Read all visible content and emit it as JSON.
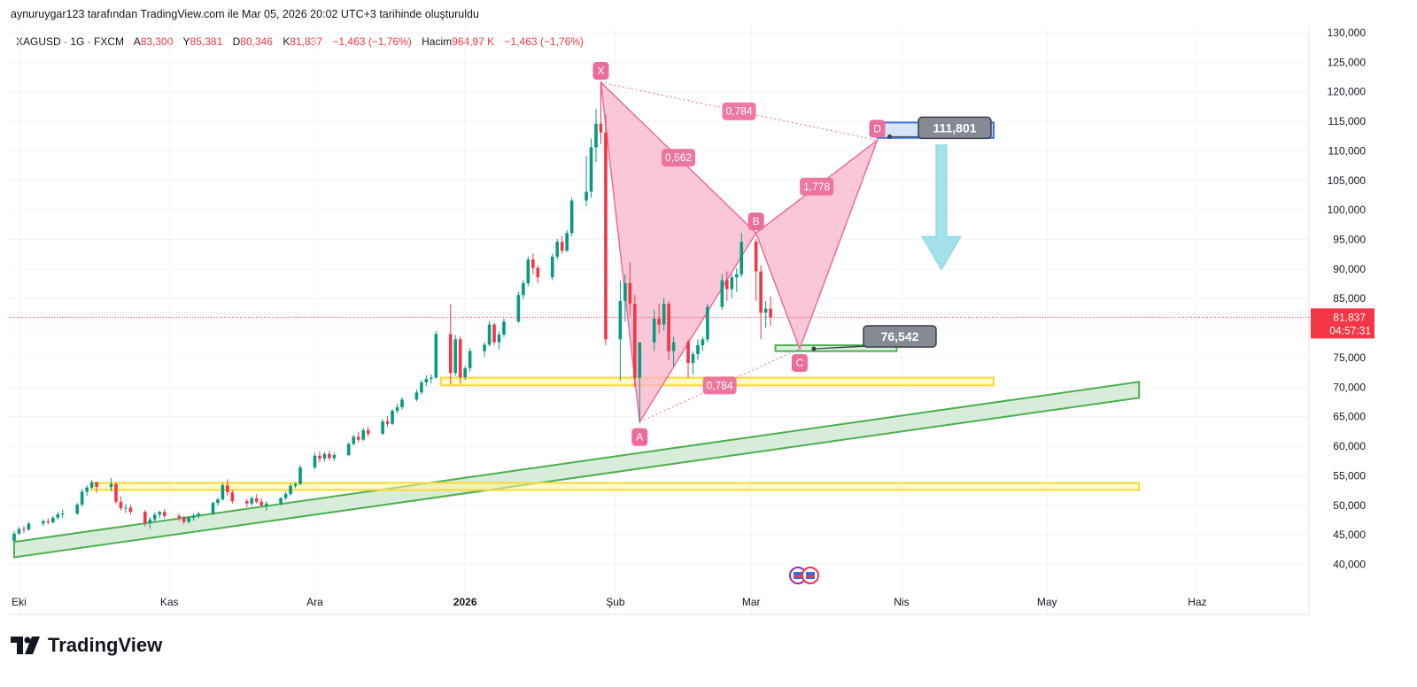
{
  "caption": "aynuruygar123 tarafından TradingView.com ile Mar 05, 2026 20:02 UTC+3 tarihinde oluşturuldu",
  "legend": {
    "symbol": "XAGUSD · 1G · FXCM",
    "open_label": "A",
    "open": "83,300",
    "high_label": "Y",
    "high": "85,381",
    "low_label": "D",
    "low": "80,346",
    "close_label": "K",
    "close": "81,837",
    "change": "−1,463 (−1,76%)",
    "volume_label": "Hacim",
    "volume": "964,97 K",
    "volume_change": "−1,463 (−1,76%)"
  },
  "brand": "TradingView",
  "last_price": {
    "value": "81,837",
    "countdown": "04:57:31"
  },
  "colors": {
    "up": "#089981",
    "down": "#f23645",
    "pattern": "#ec6d9b",
    "pattern_fill": "#f8b4cb",
    "support": "#4caf50",
    "zone_yellow": "#ffeb3b",
    "target_box": "#3b6fd8",
    "arrow": "#7fd3e6",
    "callout": "#858a95"
  },
  "chart_data": {
    "type": "candlestick",
    "ylim": [
      37000,
      132000
    ],
    "y_ticks": [
      "40,000",
      "45,000",
      "50,000",
      "55,000",
      "60,000",
      "65,000",
      "70,000",
      "75,000",
      "80,000",
      "85,000",
      "90,000",
      "95,000",
      "100,000",
      "105,000",
      "110,000",
      "115,000",
      "120,000",
      "125,000",
      "130,000"
    ],
    "x_ticks": [
      {
        "label": "Eki",
        "date": "2025-10-01",
        "bold": false
      },
      {
        "label": "Kas",
        "date": "2025-11-01",
        "bold": false
      },
      {
        "label": "Ara",
        "date": "2025-12-01",
        "bold": false
      },
      {
        "label": "2026",
        "date": "2026-01-01",
        "bold": true
      },
      {
        "label": "Şub",
        "date": "2026-02-01",
        "bold": false
      },
      {
        "label": "Mar",
        "date": "2026-03-01",
        "bold": false
      },
      {
        "label": "Nis",
        "date": "2026-04-01",
        "bold": false
      },
      {
        "label": "May",
        "date": "2026-05-01",
        "bold": false
      },
      {
        "label": "Haz",
        "date": "2026-06-01",
        "bold": false
      }
    ],
    "candles": [
      [
        "2025-09-30",
        44.0,
        45.6,
        43.8,
        45.2
      ],
      [
        "2025-10-01",
        45.2,
        46.3,
        45.0,
        46.0
      ],
      [
        "2025-10-02",
        46.0,
        46.5,
        45.3,
        45.9
      ],
      [
        "2025-10-03",
        45.9,
        47.2,
        45.7,
        46.9
      ],
      [
        "2025-10-06",
        46.9,
        47.6,
        46.5,
        47.3
      ],
      [
        "2025-10-07",
        47.3,
        47.8,
        46.8,
        47.1
      ],
      [
        "2025-10-08",
        47.1,
        48.2,
        46.9,
        47.9
      ],
      [
        "2025-10-09",
        47.9,
        48.9,
        47.5,
        48.5
      ],
      [
        "2025-10-10",
        48.5,
        49.3,
        47.9,
        48.6
      ],
      [
        "2025-10-13",
        48.6,
        50.4,
        48.4,
        50.1
      ],
      [
        "2025-10-14",
        50.1,
        52.8,
        49.8,
        52.3
      ],
      [
        "2025-10-15",
        52.3,
        53.4,
        51.6,
        53.0
      ],
      [
        "2025-10-16",
        53.0,
        54.3,
        52.7,
        53.9
      ],
      [
        "2025-10-17",
        53.9,
        54.0,
        52.1,
        53.1
      ],
      [
        "2025-10-20",
        53.1,
        54.6,
        52.4,
        53.6
      ],
      [
        "2025-10-21",
        53.6,
        53.9,
        50.2,
        50.6
      ],
      [
        "2025-10-22",
        50.6,
        51.5,
        49.1,
        49.5
      ],
      [
        "2025-10-23",
        49.5,
        50.2,
        48.7,
        49.6
      ],
      [
        "2025-10-24",
        49.6,
        50.1,
        48.4,
        48.9
      ],
      [
        "2025-10-27",
        48.9,
        49.2,
        46.4,
        47.0
      ],
      [
        "2025-10-28",
        47.0,
        48.0,
        46.0,
        47.6
      ],
      [
        "2025-10-29",
        47.6,
        48.8,
        47.2,
        48.4
      ],
      [
        "2025-10-30",
        48.4,
        49.1,
        47.8,
        48.9
      ],
      [
        "2025-10-31",
        48.9,
        49.4,
        47.8,
        48.2
      ],
      [
        "2025-11-03",
        48.2,
        48.6,
        47.3,
        47.9
      ],
      [
        "2025-11-04",
        47.9,
        48.2,
        46.8,
        47.2
      ],
      [
        "2025-11-05",
        47.2,
        48.1,
        46.9,
        47.9
      ],
      [
        "2025-11-06",
        47.9,
        48.6,
        47.4,
        48.2
      ],
      [
        "2025-11-07",
        48.2,
        48.9,
        47.8,
        48.6
      ],
      [
        "2025-11-10",
        48.6,
        50.6,
        48.4,
        50.4
      ],
      [
        "2025-11-11",
        50.4,
        51.3,
        49.9,
        51.0
      ],
      [
        "2025-11-12",
        51.0,
        53.8,
        50.8,
        53.4
      ],
      [
        "2025-11-13",
        53.4,
        54.4,
        51.6,
        52.2
      ],
      [
        "2025-11-14",
        52.2,
        52.6,
        50.3,
        50.7
      ],
      [
        "2025-11-17",
        50.7,
        51.1,
        49.7,
        50.3
      ],
      [
        "2025-11-18",
        50.3,
        51.5,
        49.9,
        51.2
      ],
      [
        "2025-11-19",
        51.2,
        51.9,
        50.3,
        50.6
      ],
      [
        "2025-11-20",
        50.6,
        51.2,
        49.8,
        50.0
      ],
      [
        "2025-11-21",
        50.0,
        50.7,
        49.1,
        50.3
      ],
      [
        "2025-11-24",
        50.3,
        51.4,
        50.0,
        51.2
      ],
      [
        "2025-11-25",
        51.2,
        52.3,
        50.9,
        51.9
      ],
      [
        "2025-11-26",
        51.9,
        53.7,
        51.6,
        53.3
      ],
      [
        "2025-11-27",
        53.3,
        53.9,
        52.9,
        53.6
      ],
      [
        "2025-11-28",
        53.6,
        56.8,
        53.4,
        56.4
      ],
      [
        "2025-12-01",
        56.4,
        58.9,
        56.1,
        58.4
      ],
      [
        "2025-12-02",
        58.4,
        59.1,
        57.2,
        57.9
      ],
      [
        "2025-12-03",
        57.9,
        59.0,
        57.4,
        58.7
      ],
      [
        "2025-12-04",
        58.7,
        59.2,
        57.6,
        58.0
      ],
      [
        "2025-12-05",
        58.0,
        58.9,
        57.5,
        58.5
      ],
      [
        "2025-12-08",
        58.5,
        60.6,
        58.3,
        60.4
      ],
      [
        "2025-12-09",
        60.4,
        62.0,
        60.1,
        61.6
      ],
      [
        "2025-12-10",
        61.6,
        62.4,
        60.6,
        61.1
      ],
      [
        "2025-12-11",
        61.1,
        63.1,
        60.9,
        62.7
      ],
      [
        "2025-12-12",
        62.7,
        63.3,
        61.6,
        62.1
      ],
      [
        "2025-12-15",
        62.1,
        64.6,
        61.9,
        64.2
      ],
      [
        "2025-12-16",
        64.2,
        65.1,
        63.3,
        63.8
      ],
      [
        "2025-12-17",
        63.8,
        66.3,
        63.6,
        66.0
      ],
      [
        "2025-12-18",
        66.0,
        67.2,
        65.6,
        66.6
      ],
      [
        "2025-12-19",
        66.6,
        68.3,
        66.2,
        67.9
      ],
      [
        "2025-12-22",
        67.9,
        69.6,
        67.6,
        69.1
      ],
      [
        "2025-12-23",
        69.1,
        71.2,
        68.8,
        70.8
      ],
      [
        "2025-12-24",
        70.8,
        72.0,
        70.2,
        71.4
      ],
      [
        "2025-12-25",
        71.4,
        72.2,
        70.6,
        71.6
      ],
      [
        "2025-12-26",
        71.6,
        79.5,
        71.4,
        79.0
      ],
      [
        "2025-12-29",
        79.0,
        84.0,
        70.4,
        72.4
      ],
      [
        "2025-12-30",
        72.4,
        78.9,
        71.9,
        78.1
      ],
      [
        "2025-12-31",
        78.1,
        78.6,
        70.6,
        71.7
      ],
      [
        "2026-01-01",
        71.7,
        73.6,
        71.2,
        73.2
      ],
      [
        "2026-01-02",
        73.2,
        76.6,
        72.6,
        76.1
      ],
      [
        "2026-01-05",
        76.1,
        77.6,
        75.2,
        77.2
      ],
      [
        "2026-01-06",
        77.2,
        81.2,
        76.9,
        80.6
      ],
      [
        "2026-01-07",
        80.6,
        80.9,
        77.1,
        77.6
      ],
      [
        "2026-01-08",
        77.6,
        79.4,
        76.4,
        78.9
      ],
      [
        "2026-01-09",
        78.9,
        81.6,
        78.5,
        81.1
      ],
      [
        "2026-01-12",
        81.1,
        86.1,
        80.9,
        85.6
      ],
      [
        "2026-01-13",
        85.6,
        88.1,
        84.9,
        87.6
      ],
      [
        "2026-01-14",
        87.6,
        92.1,
        87.1,
        91.6
      ],
      [
        "2026-01-15",
        91.6,
        92.6,
        89.1,
        90.2
      ],
      [
        "2026-01-16",
        90.2,
        90.6,
        87.6,
        88.6
      ],
      [
        "2026-01-19",
        88.6,
        92.6,
        88.1,
        92.1
      ],
      [
        "2026-01-20",
        92.1,
        95.1,
        91.6,
        94.6
      ],
      [
        "2026-01-21",
        94.6,
        95.6,
        92.6,
        93.1
      ],
      [
        "2026-01-22",
        93.1,
        96.6,
        92.9,
        96.1
      ],
      [
        "2026-01-23",
        96.1,
        102.1,
        95.6,
        101.6
      ],
      [
        "2026-01-26",
        101.6,
        109.1,
        100.6,
        103.1
      ],
      [
        "2026-01-27",
        103.1,
        112.1,
        102.1,
        110.6
      ],
      [
        "2026-01-28",
        110.6,
        117.1,
        108.1,
        114.6
      ],
      [
        "2026-01-29",
        114.6,
        121.6,
        111.1,
        113.1
      ],
      [
        "2026-01-30",
        113.1,
        116.1,
        77.1,
        78.1
      ],
      [
        "2026-02-02",
        78.1,
        88.1,
        71.1,
        84.6
      ],
      [
        "2026-02-03",
        84.6,
        89.1,
        81.1,
        87.6
      ],
      [
        "2026-02-04",
        87.6,
        91.1,
        82.1,
        84.1
      ],
      [
        "2026-02-05",
        84.1,
        85.6,
        70.1,
        71.6
      ],
      [
        "2026-02-06",
        71.6,
        77.1,
        64.1,
        77.6
      ],
      [
        "2026-02-09",
        77.6,
        83.1,
        76.1,
        81.6
      ],
      [
        "2026-02-10",
        81.6,
        84.1,
        79.1,
        80.6
      ],
      [
        "2026-02-11",
        80.6,
        85.1,
        79.6,
        84.1
      ],
      [
        "2026-02-12",
        84.1,
        84.6,
        74.6,
        76.1
      ],
      [
        "2026-02-13",
        76.1,
        78.6,
        73.6,
        77.6
      ],
      [
        "2026-02-16",
        77.6,
        78.1,
        71.6,
        74.1
      ],
      [
        "2026-02-17",
        74.1,
        76.1,
        72.1,
        75.6
      ],
      [
        "2026-02-18",
        75.6,
        78.1,
        74.6,
        77.1
      ],
      [
        "2026-02-19",
        77.1,
        78.6,
        76.1,
        78.1
      ],
      [
        "2026-02-20",
        78.1,
        84.1,
        77.6,
        83.6
      ],
      [
        "2026-02-23",
        83.6,
        89.1,
        83.1,
        88.1
      ],
      [
        "2026-02-24",
        88.1,
        89.6,
        84.6,
        86.6
      ],
      [
        "2026-02-25",
        86.6,
        89.1,
        85.1,
        88.6
      ],
      [
        "2026-02-26",
        88.6,
        90.1,
        86.1,
        89.1
      ],
      [
        "2026-02-27",
        89.1,
        96.1,
        88.6,
        94.6
      ],
      [
        "2026-03-02",
        94.6,
        95.1,
        84.6,
        89.6
      ],
      [
        "2026-03-03",
        89.6,
        90.6,
        78.1,
        82.6
      ],
      [
        "2026-03-04",
        82.6,
        84.6,
        80.1,
        83.3
      ],
      [
        "2026-03-05",
        83.3,
        85.381,
        80.346,
        81.837
      ]
    ],
    "pattern": {
      "points": [
        {
          "label": "X",
          "date": "2026-01-29",
          "value": 121.6
        },
        {
          "label": "A",
          "date": "2026-02-06",
          "value": 64.1
        },
        {
          "label": "B",
          "date": "2026-03-02",
          "value": 96.1
        },
        {
          "label": "C",
          "date": "2026-03-11",
          "value": 76.5
        },
        {
          "label": "D",
          "date": "2026-03-27",
          "value": 111.8
        }
      ],
      "ratios": [
        {
          "label": "0,562",
          "between": "X-B"
        },
        {
          "label": "0,784",
          "between": "X-D"
        },
        {
          "label": "1,778",
          "between": "B-D"
        },
        {
          "label": "0,784",
          "between": "A-C"
        }
      ]
    },
    "targets": [
      {
        "label": "111,801",
        "value": 111.8
      },
      {
        "label": "76,542",
        "value": 76.5
      }
    ],
    "zones": [
      {
        "name": "target-zone",
        "color": "blue",
        "from": "2026-03-27",
        "to": "2026-04-20",
        "low": 112.2,
        "high": 114.8
      },
      {
        "name": "support-zone-c",
        "color": "green",
        "from": "2026-03-06",
        "to": "2026-03-31",
        "low": 76.1,
        "high": 77.1
      },
      {
        "name": "yellow-zone-70k",
        "color": "yellow",
        "from": "2025-12-27",
        "to": "2026-04-20",
        "low": 70.3,
        "high": 71.6
      },
      {
        "name": "yellow-zone-53k",
        "color": "yellow",
        "from": "2025-10-16",
        "to": "2026-05-20",
        "low": 52.6,
        "high": 53.8
      }
    ],
    "trend_channel": {
      "from": "2025-09-30",
      "to": "2026-05-20",
      "lower_start": 41.2,
      "lower_end": 68.2,
      "upper_start": 43.8,
      "upper_end": 70.9
    }
  }
}
